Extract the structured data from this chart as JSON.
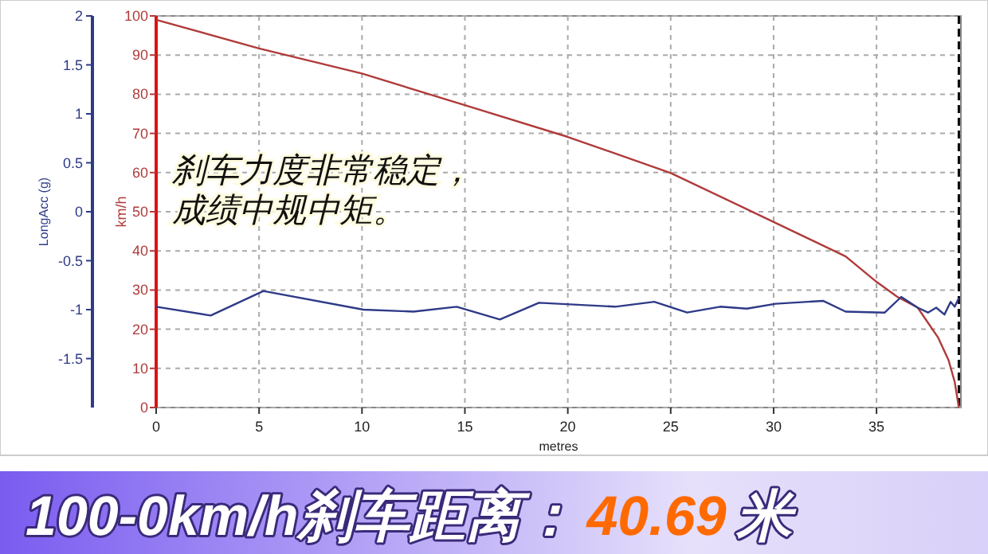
{
  "chart_data": {
    "type": "line",
    "title": "100-0km/h刹车距离：**40.69**米",
    "annotations": [
      "刹车力度非常稳定，",
      "成绩中规中矩。"
    ],
    "xlabel": "metres",
    "ylabel": "km/h",
    "y2label": "LongAcc (g)",
    "xlim": [
      0,
      39.1
    ],
    "xticks": [
      0,
      5,
      10,
      15,
      20,
      25,
      30,
      35
    ],
    "ylim": [
      0,
      100
    ],
    "yticks": [
      0,
      10,
      20,
      30,
      40,
      50,
      60,
      70,
      80,
      90,
      100
    ],
    "y2lim": [
      -2,
      2
    ],
    "y2ticks": [
      -1.5,
      -1,
      -0.5,
      0,
      0.5,
      1,
      1.5,
      2
    ],
    "grid": true,
    "marker": "none",
    "line_style": "solid",
    "ref_lines": [
      {
        "axis": "x",
        "value": 39,
        "color": "#000000",
        "line_style": "dashed"
      }
    ],
    "series": [
      {
        "color": "#b03a3a",
        "x": [
          0,
          5,
          10,
          15,
          20,
          25,
          30,
          33.5,
          35,
          36,
          37,
          38,
          38.5,
          38.8,
          39
        ],
        "values": [
          99,
          91.7,
          85.3,
          77.2,
          69.1,
          59.9,
          47.4,
          38.6,
          32.1,
          28.3,
          25.5,
          17.8,
          12.1,
          6.5,
          0
        ]
      },
      {
        "color": "#2e3a87",
        "axis": "y2",
        "x": [
          0,
          2.65,
          5.21,
          10.07,
          12.5,
          14.6,
          16.7,
          18.6,
          22.3,
          24.2,
          25.8,
          27.4,
          28.7,
          30.1,
          32.4,
          33.5,
          35.4,
          36.2,
          37,
          37.5,
          37.9,
          38.3,
          38.6,
          38.8,
          39
        ],
        "values": [
          -0.97,
          -1.06,
          -0.81,
          -1,
          -1.02,
          -0.97,
          -1.1,
          -0.93,
          -0.97,
          -0.92,
          -1.03,
          -0.97,
          -0.99,
          -0.94,
          -0.91,
          -1.02,
          -1.03,
          -0.87,
          -0.98,
          -1.03,
          -0.98,
          -1.05,
          -0.92,
          -0.97,
          -0.88
        ]
      }
    ]
  }
}
